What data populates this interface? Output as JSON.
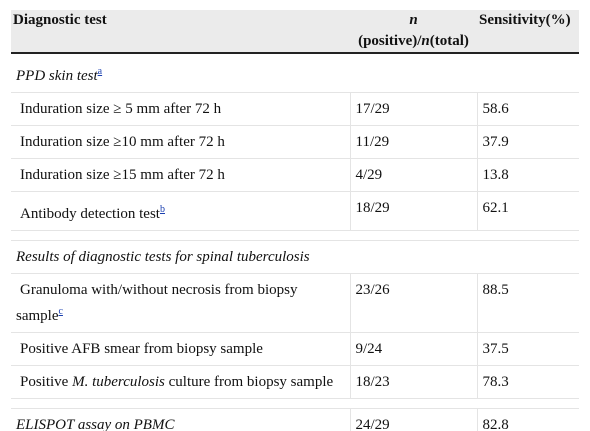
{
  "table": {
    "header": {
      "test": "Diagnostic test",
      "n_parts": [
        "n",
        "(positive)/",
        "n",
        "(total)"
      ],
      "sensitivity": "Sensitivity(%)"
    },
    "rows": [
      {
        "test": [
          {
            "text": "PPD skin test",
            "style": "italic"
          },
          {
            "text": "a",
            "style": "sup"
          }
        ]
      },
      {
        "test": [
          "Induration size ≥ 5 mm after 72 h"
        ],
        "n": "17/29",
        "sensitivity": 58.6
      },
      {
        "test": [
          "Induration size ≥10 mm after 72 h"
        ],
        "n": "11/29",
        "sensitivity": 37.9
      },
      {
        "test": [
          "Induration size ≥15 mm after 72 h"
        ],
        "n": "4/29",
        "sensitivity": 13.8
      },
      {
        "test": [
          "Antibody detection test",
          {
            "text": "b",
            "style": "sup"
          }
        ],
        "n": "18/29",
        "sensitivity": 62.1
      },
      {
        "test": [
          {
            "text": "Results of diagnostic tests for spinal tuberculosis",
            "style": "italic"
          }
        ]
      },
      {
        "test": [
          "Granuloma with/without necrosis from biopsy sample",
          {
            "text": "c",
            "style": "sup"
          }
        ],
        "n": "23/26",
        "sensitivity": 88.5
      },
      {
        "test": [
          "Positive AFB smear from biopsy sample"
        ],
        "n": "9/24",
        "sensitivity": 37.5
      },
      {
        "test": [
          "Positive ",
          {
            "text": "M. tuberculosis",
            "style": "italic"
          },
          " culture from biopsy sample"
        ],
        "n": "18/23",
        "sensitivity": 78.3
      },
      {
        "test": [
          {
            "text": "ELISPOT assay on PBMC",
            "style": "italic"
          }
        ],
        "n": "24/29",
        "sensitivity": 82.8
      }
    ]
  }
}
